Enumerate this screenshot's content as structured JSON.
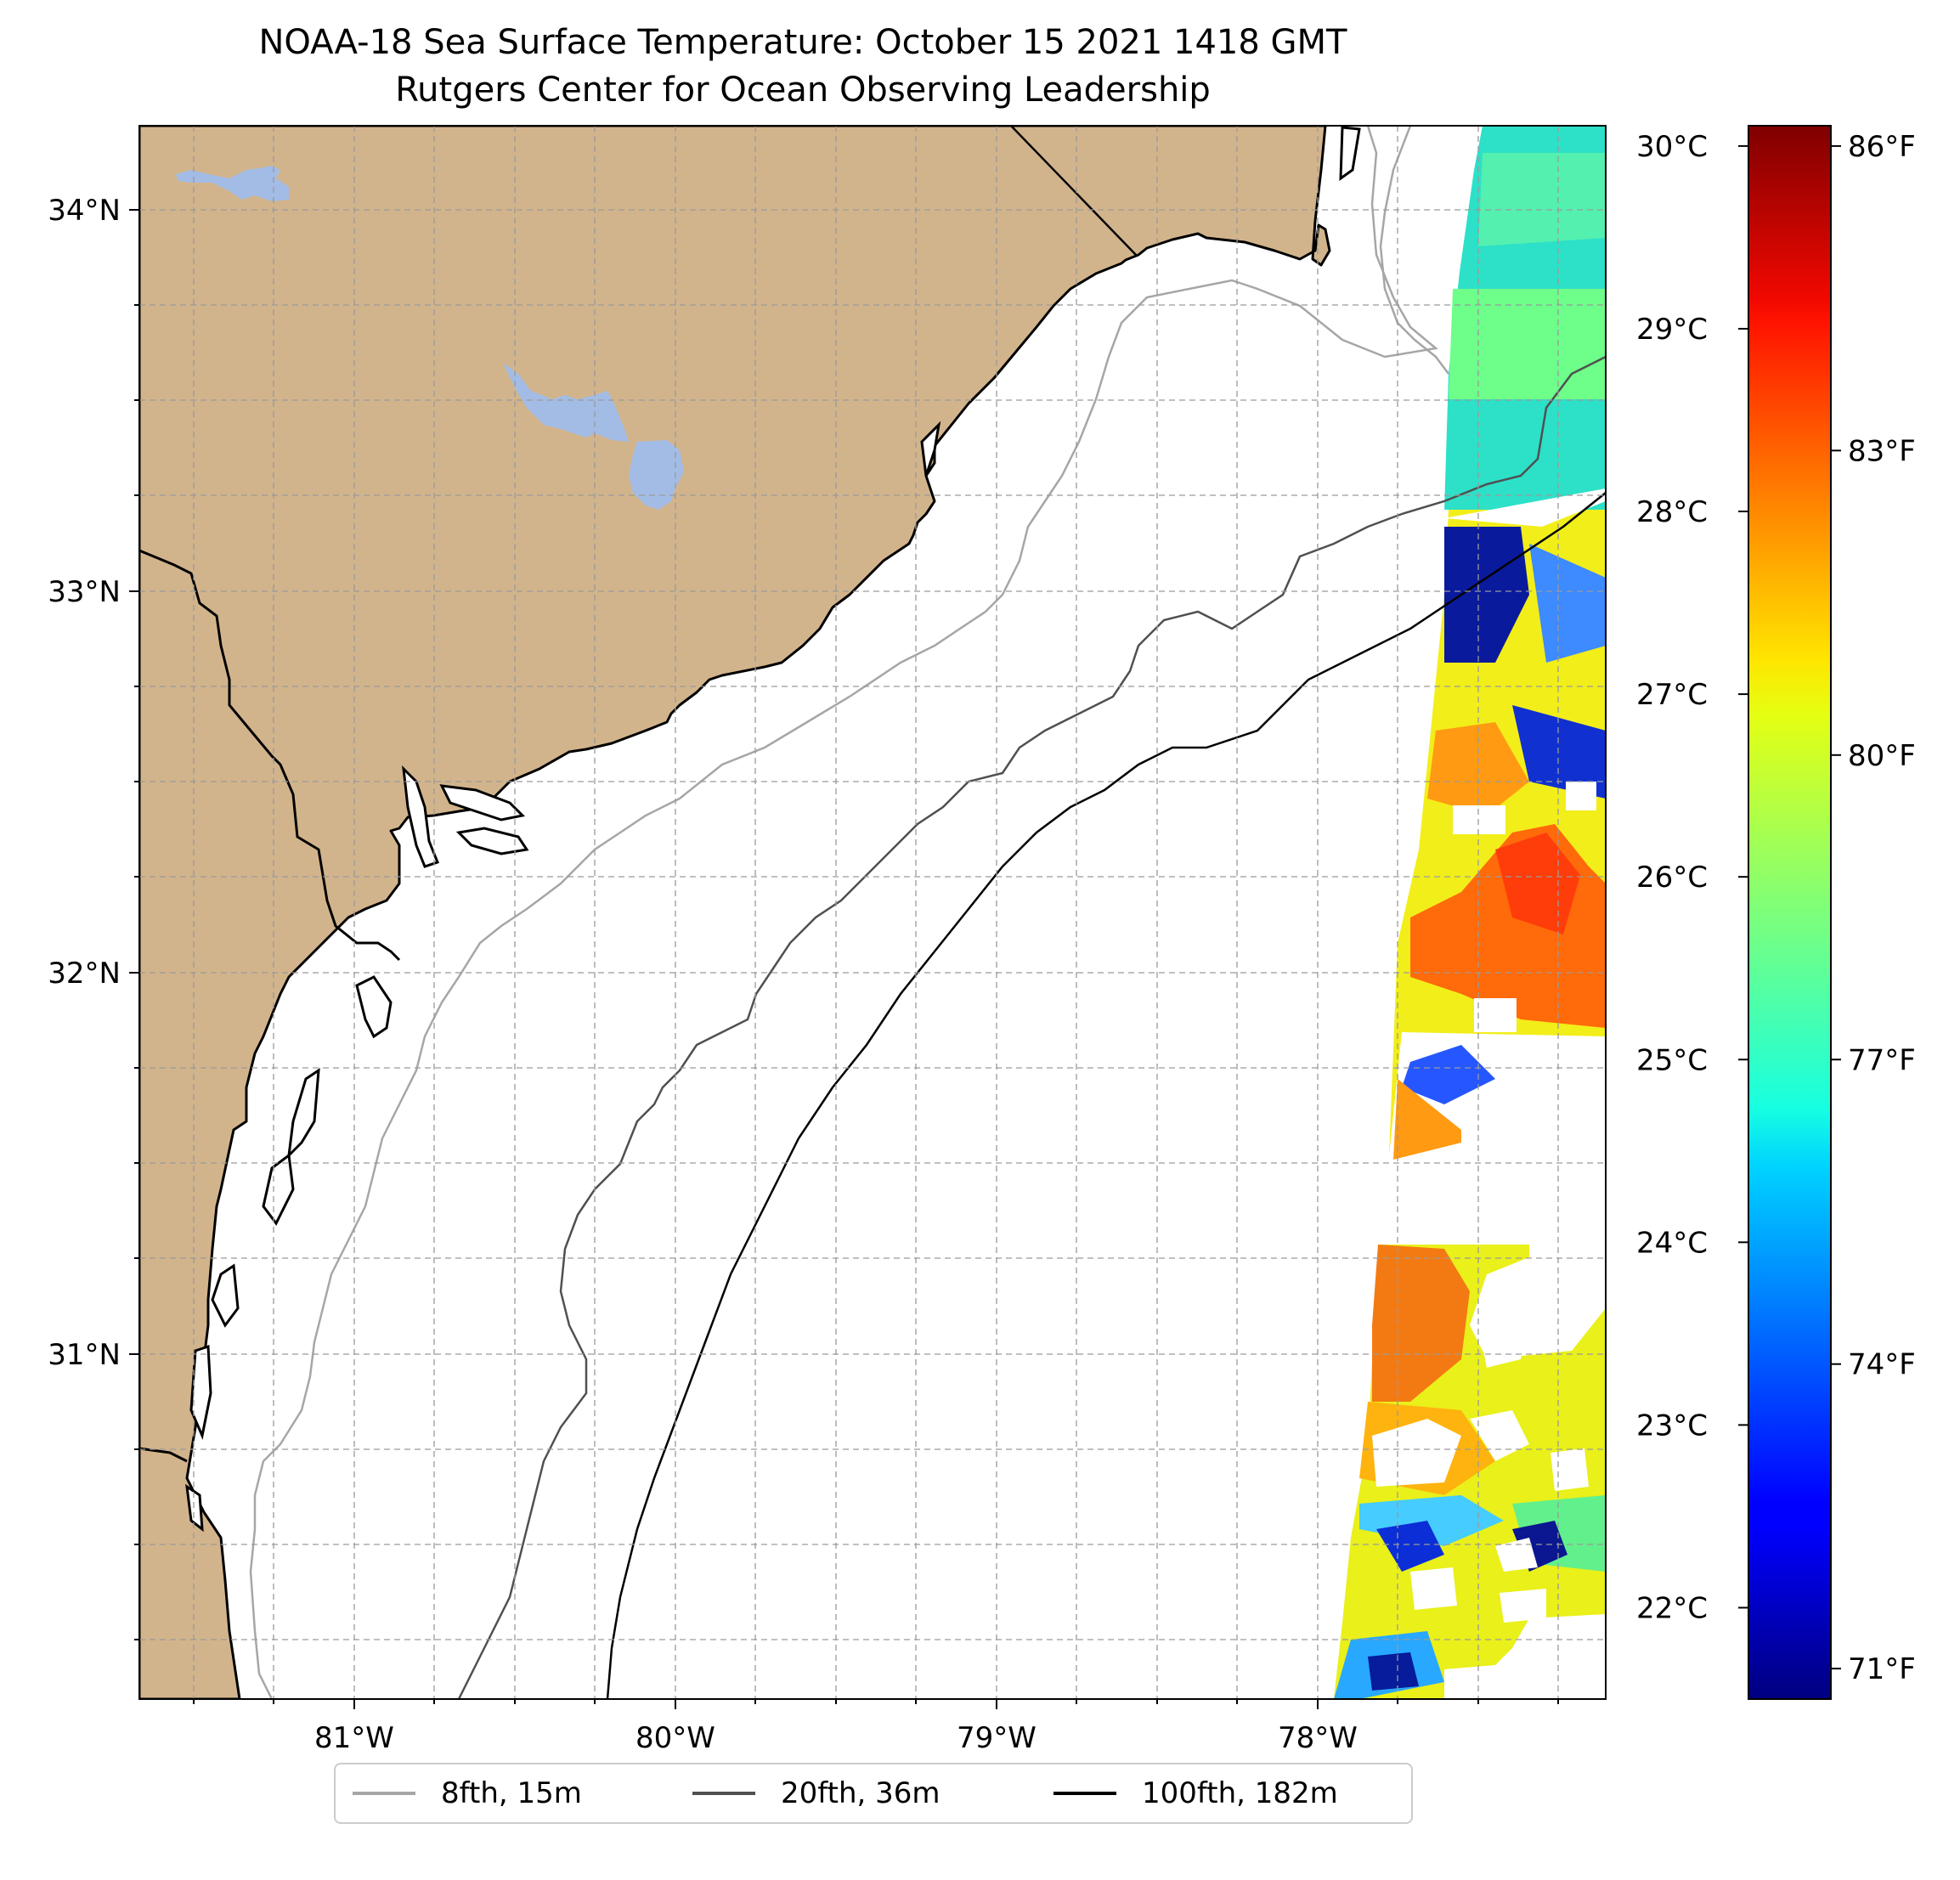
{
  "title": {
    "line1": "NOAA-18 Sea Surface Temperature: October 15 2021 1418 GMT",
    "line2": "Rutgers Center for Ocean Observing Leadership"
  },
  "map": {
    "lon_range": [
      -81.68,
      -77.1
    ],
    "lat_range": [
      30.07,
      34.22
    ],
    "lon_ticks": [
      {
        "value": -81,
        "label": "81°W"
      },
      {
        "value": -80,
        "label": "80°W"
      },
      {
        "value": -79,
        "label": "79°W"
      },
      {
        "value": -78,
        "label": "78°W"
      }
    ],
    "lat_ticks": [
      {
        "value": 34,
        "label": "34°N"
      },
      {
        "value": 33,
        "label": "33°N"
      },
      {
        "value": 32,
        "label": "32°N"
      },
      {
        "value": 31,
        "label": "31°N"
      }
    ],
    "land_color": "#d2b48c",
    "water_color": "#a3bce6",
    "grid": true
  },
  "colorbar": {
    "colormap": "jet",
    "celsius_ticks": [
      "30°C",
      "29°C",
      "28°C",
      "27°C",
      "26°C",
      "25°C",
      "24°C",
      "23°C",
      "22°C"
    ],
    "fahrenheit_ticks": [
      "86°F",
      "83°F",
      "80°F",
      "77°F",
      "74°F",
      "71°F"
    ],
    "celsius_values": [
      30,
      29,
      28,
      27,
      26,
      25,
      24,
      23,
      22
    ],
    "fahrenheit_values": [
      86,
      83,
      80,
      77,
      74,
      71
    ],
    "range_f": [
      70.7,
      86.2
    ]
  },
  "legend": {
    "items": [
      {
        "label": "8fth, 15m",
        "color": "#a6a6a6"
      },
      {
        "label": "20fth, 36m",
        "color": "#505050"
      },
      {
        "label": "100fth, 182m",
        "color": "#000000"
      }
    ]
  }
}
